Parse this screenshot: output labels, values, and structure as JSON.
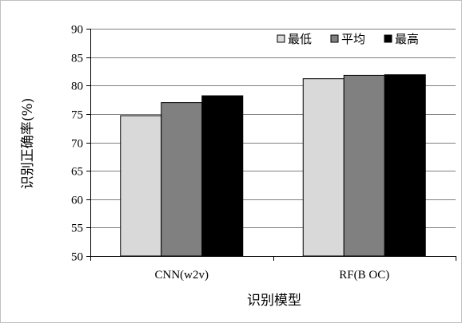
{
  "chart_data": {
    "type": "bar",
    "categories": [
      "CNN(w2v)",
      "RF(B OC)"
    ],
    "series": [
      {
        "name": "最低",
        "values": [
          74.7,
          81.2
        ],
        "color": "#d9d9d9"
      },
      {
        "name": "平均",
        "values": [
          77.0,
          81.8
        ],
        "color": "#808080"
      },
      {
        "name": "最高",
        "values": [
          78.2,
          81.9
        ],
        "color": "#000000"
      }
    ],
    "xlabel": "识别模型",
    "ylabel": "识别正确率(%)",
    "ylim": [
      50,
      90
    ],
    "yticks": [
      50,
      55,
      60,
      65,
      70,
      75,
      80,
      85,
      90
    ],
    "grid": true,
    "legend_position": "top-right"
  }
}
